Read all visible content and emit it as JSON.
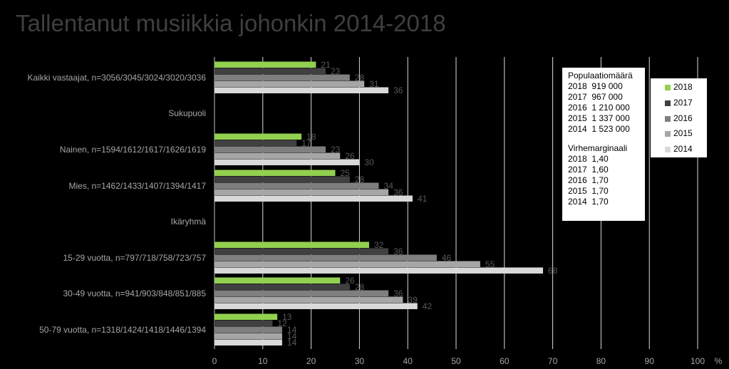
{
  "chart_data": {
    "type": "bar",
    "orientation": "horizontal",
    "title": "Tallentanut musiikkia johonkin 2014-2018",
    "categories": [
      "Kaikki vastaajat, n=3056/3045/3024/3020/3036",
      "Sukupuoli",
      "Nainen, n=1594/1612/1617/1626/1619",
      "Mies, n=1462/1433/1407/1394/1417",
      "Ikäryhmä",
      "15-29 vuotta, n=797/718/758/723/757",
      "30-49 vuotta, n=941/903/848/851/885",
      "50-79 vuotta, n=1318/1424/1418/1446/1394"
    ],
    "series": [
      {
        "name": "2018",
        "color": "#92d050",
        "values": [
          21,
          null,
          18,
          25,
          null,
          32,
          26,
          13
        ]
      },
      {
        "name": "2017",
        "color": "#404040",
        "values": [
          23,
          null,
          17,
          28,
          null,
          36,
          28,
          12
        ]
      },
      {
        "name": "2016",
        "color": "#7f7f7f",
        "values": [
          28,
          null,
          23,
          34,
          null,
          46,
          36,
          14
        ]
      },
      {
        "name": "2015",
        "color": "#a6a6a6",
        "values": [
          31,
          null,
          26,
          36,
          null,
          55,
          39,
          14
        ]
      },
      {
        "name": "2014",
        "color": "#d9d9d9",
        "values": [
          36,
          null,
          30,
          41,
          null,
          68,
          42,
          14
        ]
      }
    ],
    "xlim": [
      0,
      100
    ],
    "xticks": [
      "0",
      "10",
      "20",
      "30",
      "40",
      "50",
      "60",
      "70",
      "80",
      "90",
      "100"
    ],
    "xunit": "%",
    "grid": true,
    "legend_position": "right"
  },
  "info_box": {
    "population_title": "Populaatiomäärä",
    "population": [
      "2018  919 000",
      "2017  967 000",
      "2016  1 210 000",
      "2015  1 337 000",
      "2014  1 523 000"
    ],
    "margin_title": "Virhemarginaali",
    "margin": [
      "2018  1,40",
      "2017  1,60",
      "2016  1,70",
      "2015  1,70",
      "2014  1,70"
    ]
  }
}
